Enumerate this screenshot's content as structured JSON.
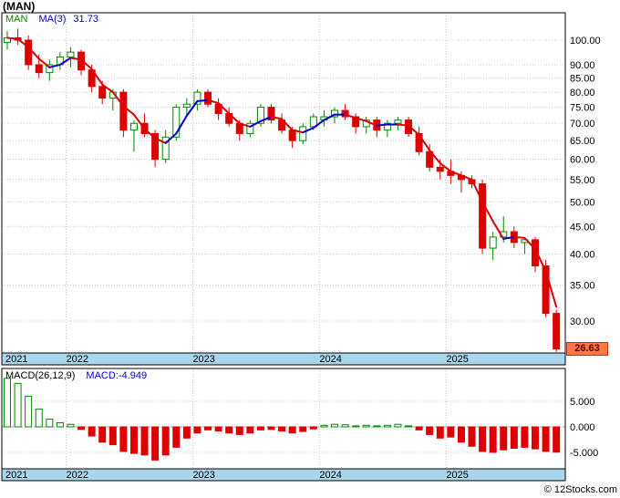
{
  "title": "(MAN)",
  "copyright": "© 12Stocks.com",
  "price_panel": {
    "legend": {
      "symbol": "MAN",
      "ma_label": "MA(3)",
      "ma_value": "31.73"
    },
    "last_price": "26.63",
    "y_ticks": [
      "100.00",
      "90.00",
      "85.00",
      "80.00",
      "75.00",
      "70.00",
      "65.00",
      "60.00",
      "55.00",
      "50.00",
      "45.00",
      "40.00",
      "35.00",
      "30.00"
    ],
    "x_ticks": [
      "2021",
      "2022",
      "2023",
      "2024",
      "2025"
    ]
  },
  "macd_panel": {
    "legend": {
      "label": "MACD(26,12,9)",
      "value": "MACD:-4.949"
    },
    "y_ticks": [
      "5.000",
      "0.000",
      "-5.000"
    ],
    "x_ticks": [
      "2021",
      "2022",
      "2023",
      "2024",
      "2025"
    ]
  },
  "colors": {
    "up": "#008800",
    "down": "#dd0000",
    "ma_rising": "#0000cc",
    "ma_falling": "#dd0000",
    "grid": "#c8c8c8",
    "grid_zero": "#999999",
    "axis_band": "#aad5ea",
    "panel_border": "#000000",
    "last_price_bg": "#ff7744",
    "last_price_border": "#cc3300",
    "last_price_text": "#5d0000",
    "symbol_green": "#008800",
    "legend_blue": "#0000cc",
    "text": "#000000"
  },
  "chart_data": [
    {
      "type": "candlestick",
      "title": "(MAN) monthly price chart with MA(3) overlay",
      "period": "monthly bars, mid-2021 through late 2025",
      "y_scale": "log",
      "ylim": [
        26,
        106
      ],
      "y_axis_labels": [
        100,
        90,
        85,
        80,
        75,
        70,
        65,
        60,
        55,
        50,
        45,
        40,
        35,
        30
      ],
      "x_axis_labels": [
        "2021",
        "2022",
        "2023",
        "2024",
        "2025"
      ],
      "x_axis_label_indices": [
        0,
        6,
        18,
        30,
        42
      ],
      "last_price": 26.63,
      "ma3_last": 31.73,
      "overlay": "MA(3) moving-average line, blue when rising / red when falling",
      "candles_ohlc": [
        [
          99,
          104,
          96,
          101
        ],
        [
          101,
          105,
          98,
          100
        ],
        [
          100,
          102,
          88,
          90
        ],
        [
          90,
          94,
          85,
          87
        ],
        [
          87,
          92,
          84,
          90
        ],
        [
          90,
          95,
          88,
          93
        ],
        [
          93,
          97,
          89,
          95
        ],
        [
          95,
          96,
          86,
          88
        ],
        [
          88,
          90,
          80,
          82
        ],
        [
          82,
          84,
          76,
          78
        ],
        [
          78,
          81,
          74,
          80
        ],
        [
          80,
          81,
          66,
          68
        ],
        [
          68,
          71,
          62,
          70
        ],
        [
          70,
          73,
          66,
          67
        ],
        [
          67,
          68,
          58,
          60
        ],
        [
          60,
          68,
          59,
          66
        ],
        [
          66,
          76,
          65,
          75
        ],
        [
          75,
          78,
          72,
          76
        ],
        [
          76,
          81,
          74,
          80
        ],
        [
          80,
          81,
          75,
          76
        ],
        [
          76,
          78,
          71,
          73
        ],
        [
          73,
          75,
          69,
          70
        ],
        [
          70,
          71,
          65,
          67
        ],
        [
          67,
          71,
          66,
          70
        ],
        [
          70,
          76,
          69,
          75
        ],
        [
          75,
          76,
          70,
          71
        ],
        [
          71,
          73,
          67,
          68
        ],
        [
          68,
          69,
          63,
          65
        ],
        [
          65,
          70,
          64,
          69
        ],
        [
          69,
          73,
          68,
          72
        ],
        [
          71,
          74,
          69,
          72
        ],
        [
          72,
          75,
          70,
          74
        ],
        [
          74,
          76,
          71,
          72
        ],
        [
          72,
          73,
          67,
          69
        ],
        [
          69,
          72,
          67,
          71
        ],
        [
          71,
          72,
          66,
          68
        ],
        [
          68,
          71,
          66,
          70
        ],
        [
          70,
          72,
          68,
          71
        ],
        [
          71,
          72,
          66,
          67
        ],
        [
          67,
          69,
          61,
          62
        ],
        [
          62,
          64,
          57,
          58
        ],
        [
          58,
          60,
          55,
          57
        ],
        [
          57,
          60,
          54,
          56
        ],
        [
          56,
          57,
          52,
          55
        ],
        [
          55,
          56,
          53,
          54
        ],
        [
          54,
          55,
          40,
          41
        ],
        [
          41,
          44,
          39,
          43
        ],
        [
          43,
          47,
          42,
          44
        ],
        [
          44,
          45,
          41,
          42
        ],
        [
          42,
          43,
          40,
          42.5
        ],
        [
          42.5,
          43,
          37,
          38
        ],
        [
          38,
          39,
          30.5,
          31
        ],
        [
          31,
          31.5,
          26.3,
          26.63
        ]
      ]
    },
    {
      "type": "bar",
      "title": "MACD(26,12,9) histogram",
      "last_value": -4.949,
      "ylim": [
        -7,
        11
      ],
      "y_axis_labels": [
        5,
        0,
        -5
      ],
      "x_axis_labels": [
        "2021",
        "2022",
        "2023",
        "2024",
        "2025"
      ],
      "values": [
        9.5,
        8.5,
        6.0,
        3.5,
        1.5,
        0.8,
        0.5,
        -0.5,
        -1.8,
        -3.0,
        -3.5,
        -4.8,
        -5.2,
        -5.5,
        -6.5,
        -5.5,
        -4.0,
        -2.2,
        -1.2,
        -0.6,
        -0.8,
        -1.2,
        -1.5,
        -1.2,
        -0.6,
        -0.5,
        -0.8,
        -1.2,
        -0.9,
        -0.4,
        0.3,
        0.5,
        0.4,
        0.2,
        0.3,
        0.2,
        0.3,
        0.5,
        0.2,
        -0.6,
        -1.5,
        -2.2,
        -2.0,
        -3.0,
        -3.8,
        -4.8,
        -5.0,
        -4.5,
        -4.2,
        -4.0,
        -4.3,
        -4.8,
        -4.949
      ]
    }
  ]
}
